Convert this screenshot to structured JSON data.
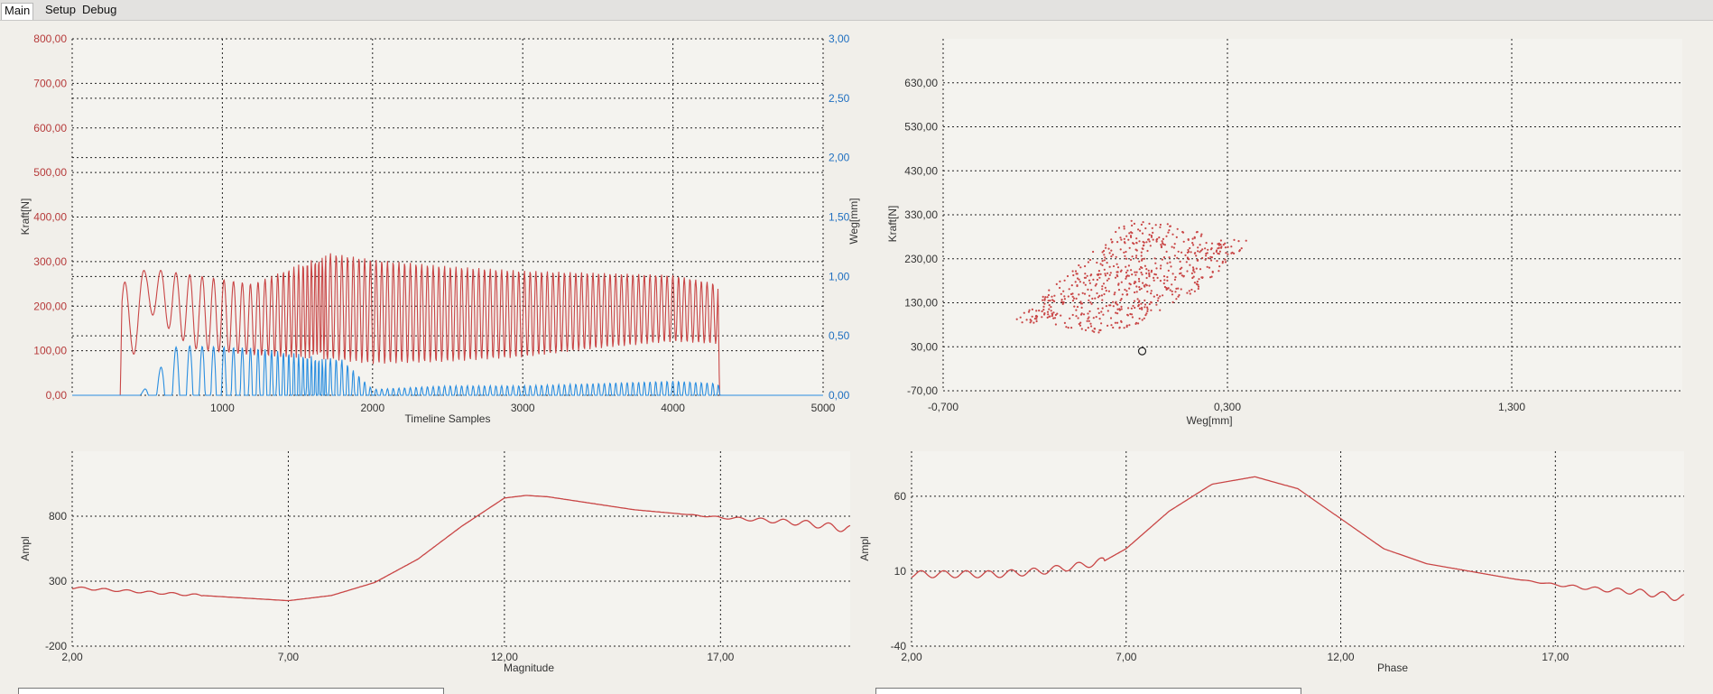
{
  "tabs": [
    {
      "label": "Main",
      "active": true
    },
    {
      "label": "Setup",
      "active": false
    },
    {
      "label": "Debug",
      "active": false
    }
  ],
  "colors": {
    "force": "#c94646",
    "path": "#2a8ee0",
    "grid": "#222222",
    "plot_bg": "#f4f3ef"
  },
  "chart_data": [
    {
      "id": "timeline",
      "type": "line",
      "xlabel": "Timeline Samples",
      "ylabel_left": "Kraft[N]",
      "ylabel_right": "Weg[mm]",
      "xlim": [
        0,
        5000
      ],
      "ylim_left": [
        0,
        800
      ],
      "ylim_right": [
        0,
        3
      ],
      "x_ticks": [
        "1000",
        "2000",
        "3000",
        "4000",
        "5000"
      ],
      "y_left_ticks": [
        "0,00",
        "100,00",
        "200,00",
        "300,00",
        "400,00",
        "500,00",
        "600,00",
        "700,00",
        "800,00"
      ],
      "y_right_ticks": [
        "0,00",
        "0,50",
        "1,00",
        "1,50",
        "2,00",
        "2,50",
        "3,00"
      ],
      "grid": true,
      "series": [
        {
          "axis": "left",
          "envelope_x": [
            0,
            320,
            330,
            500,
            800,
            1200,
            1700,
            2000,
            2500,
            3000,
            3500,
            4000,
            4300,
            4310,
            5000
          ],
          "envelope_max": [
            0,
            0,
            250,
            285,
            270,
            250,
            320,
            305,
            290,
            280,
            275,
            270,
            250,
            0,
            0
          ],
          "envelope_min": [
            0,
            0,
            0,
            190,
            105,
            90,
            80,
            70,
            75,
            85,
            105,
            120,
            115,
            0,
            0
          ]
        },
        {
          "axis": "right",
          "envelope_x": [
            0,
            450,
            700,
            1200,
            1800,
            2000,
            2500,
            3000,
            3500,
            4000,
            4300,
            4320,
            5000
          ],
          "envelope_max": [
            0,
            0,
            0.42,
            0.4,
            0.3,
            0.05,
            0.08,
            0.08,
            0.1,
            0.12,
            0.1,
            0,
            0
          ],
          "envelope_min": [
            0,
            0,
            0,
            0,
            0,
            0,
            0,
            0,
            0,
            0,
            0,
            0,
            0
          ]
        }
      ]
    },
    {
      "id": "force-vs-path",
      "type": "scatter",
      "xlabel": "Weg[mm]",
      "ylabel": "Kraft[N]",
      "xlim": [
        -0.7,
        1.9
      ],
      "ylim": [
        -70,
        730
      ],
      "x_ticks": [
        "-0,700",
        "0,300",
        "1,300"
      ],
      "y_ticks": [
        "-70,00",
        "30,00",
        "130,00",
        "230,00",
        "330,00",
        "430,00",
        "530,00",
        "630,00"
      ],
      "grid": true,
      "cloud_polygon_x": [
        -0.45,
        -0.2,
        -0.05,
        0.1,
        0.3,
        0.42,
        0.2,
        -0.05,
        -0.15,
        -0.42
      ],
      "cloud_polygon_y": [
        90,
        230,
        320,
        310,
        270,
        290,
        160,
        70,
        60,
        80
      ],
      "marker": {
        "x": -0.0,
        "y": 20
      }
    },
    {
      "id": "magnitude",
      "type": "line",
      "xlabel": "Magnitude",
      "ylabel": "Ampl",
      "xlim": [
        2,
        20
      ],
      "ylim": [
        -200,
        1300
      ],
      "x_ticks": [
        "2,00",
        "7,00",
        "12,00",
        "17,00"
      ],
      "y_ticks": [
        "-200",
        "300",
        "800"
      ],
      "grid": true,
      "x": [
        2,
        3,
        4,
        5,
        6,
        7,
        8,
        9,
        10,
        11,
        12,
        12.5,
        13,
        14,
        15,
        16,
        17,
        18,
        19,
        20
      ],
      "y": [
        250,
        230,
        210,
        190,
        170,
        150,
        190,
        290,
        470,
        720,
        940,
        960,
        950,
        900,
        850,
        820,
        790,
        770,
        745,
        700
      ]
    },
    {
      "id": "phase",
      "type": "line",
      "xlabel": "Phase",
      "ylabel": "Ampl",
      "xlim": [
        2,
        20
      ],
      "ylim": [
        -40,
        90
      ],
      "x_ticks": [
        "2,00",
        "7,00",
        "12,00",
        "17,00"
      ],
      "y_ticks": [
        "-40",
        "10",
        "60"
      ],
      "grid": true,
      "x": [
        2,
        3,
        4,
        5,
        6,
        6.5,
        7,
        8,
        9,
        10,
        11,
        12,
        13,
        14,
        15,
        16,
        17,
        18,
        19,
        20
      ],
      "y": [
        8,
        8,
        8,
        10,
        14,
        17,
        25,
        50,
        68,
        73,
        65,
        45,
        25,
        15,
        10,
        5,
        1,
        -2,
        -4,
        -8
      ]
    }
  ]
}
